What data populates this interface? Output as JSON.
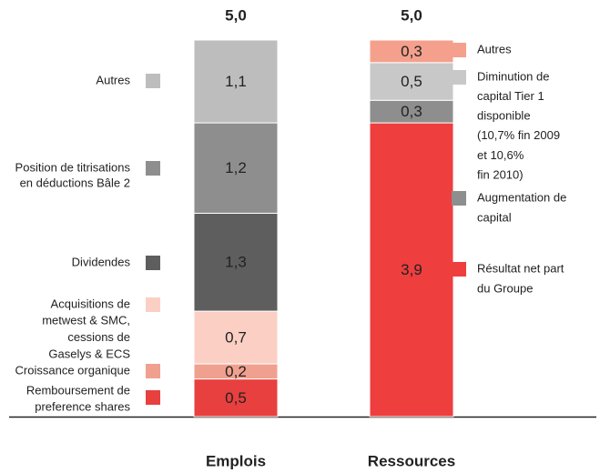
{
  "chart_data": {
    "type": "stacked_bar",
    "categories": [
      "Emplois",
      "Ressources"
    ],
    "totals": [
      5.0,
      5.0
    ],
    "total_labels": [
      "5,0",
      "5,0"
    ],
    "ylim": [
      0,
      5
    ],
    "bars": [
      {
        "segments": [
          {
            "name": [
              "Remboursement de",
              "preference shares"
            ],
            "value": 0.5,
            "value_label": "0,5",
            "color": "#e8403f"
          },
          {
            "name": [
              "Croissance organique"
            ],
            "value": 0.2,
            "value_label": "0,2",
            "color": "#f0a08f"
          },
          {
            "name": [
              "Acquisitions de",
              "metwest & SMC,",
              "cessions de",
              "Gaselys & ECS"
            ],
            "value": 0.7,
            "value_label": "0,7",
            "color": "#fbcfc4"
          },
          {
            "name": [
              "Dividendes"
            ],
            "value": 1.3,
            "value_label": "1,3",
            "color": "#5e5e5e"
          },
          {
            "name": [
              "Position de titrisations",
              "en déductions Bâle 2"
            ],
            "value": 1.2,
            "value_label": "1,2",
            "color": "#8e8e8e"
          },
          {
            "name": [
              "Autres"
            ],
            "value": 1.1,
            "value_label": "1,1",
            "color": "#bdbdbe"
          }
        ]
      },
      {
        "segments": [
          {
            "name": [
              "Résultat net part",
              "du Groupe"
            ],
            "value": 3.9,
            "value_label": "3,9",
            "color": "#ee3e3e"
          },
          {
            "name": [
              "Augmentation de",
              "capital"
            ],
            "value": 0.3,
            "value_label": "0,3",
            "color": "#8e8e8e"
          },
          {
            "name": [
              "Diminution de",
              "capital Tier 1",
              "disponible",
              "(10,7% fin 2009",
              "et  10,6%",
              "fin 2010)"
            ],
            "value": 0.5,
            "value_label": "0,5",
            "color": "#c8c8c8"
          },
          {
            "name": [
              "Autres"
            ],
            "value": 0.3,
            "value_label": "0,3",
            "color": "#f4a08d"
          }
        ]
      }
    ]
  }
}
